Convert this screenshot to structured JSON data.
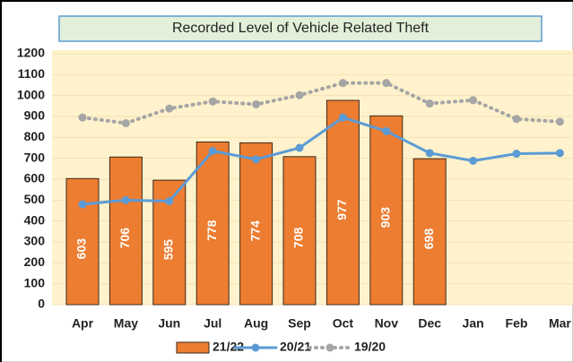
{
  "chart_data": {
    "type": "bar-line",
    "title": "Recorded Level of Vehicle Related Theft",
    "categories": [
      "Apr",
      "May",
      "Jun",
      "Jul",
      "Aug",
      "Sep",
      "Oct",
      "Nov",
      "Dec",
      "Jan",
      "Feb",
      "Mar"
    ],
    "series": [
      {
        "name": "21/22",
        "type": "bar",
        "color": "#ED7D31",
        "values": [
          603,
          706,
          595,
          778,
          774,
          708,
          977,
          903,
          698,
          null,
          null,
          null
        ]
      },
      {
        "name": "20/21",
        "type": "line",
        "color": "#5B9BD5",
        "values": [
          480,
          500,
          495,
          735,
          695,
          750,
          895,
          830,
          725,
          688,
          722,
          725
        ]
      },
      {
        "name": "19/20",
        "type": "dotted-line",
        "color": "#A5A5A5",
        "values": [
          895,
          868,
          938,
          972,
          958,
          1002,
          1060,
          1060,
          962,
          978,
          888,
          875
        ]
      }
    ],
    "ylim": [
      0,
      1200
    ],
    "yticks": [
      0,
      100,
      200,
      300,
      400,
      500,
      600,
      700,
      800,
      900,
      1000,
      1100,
      1200
    ],
    "grid": true,
    "legend": "bottom"
  }
}
